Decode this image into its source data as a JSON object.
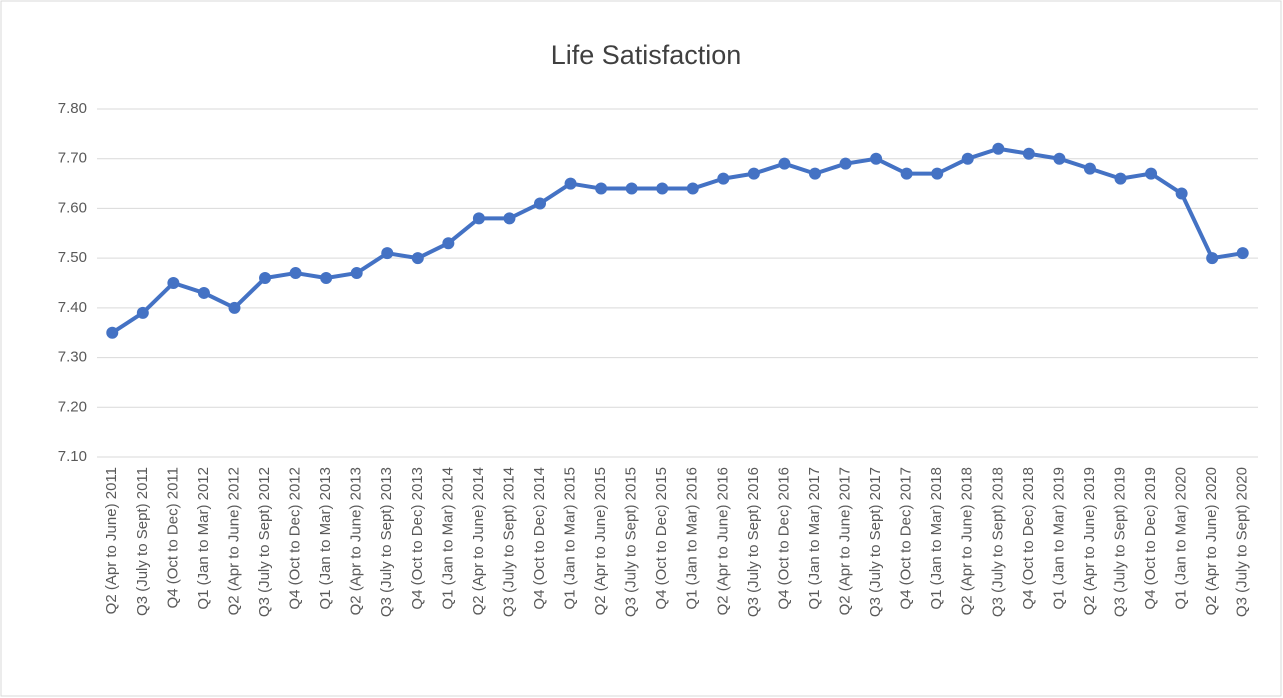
{
  "chart_data": {
    "type": "line",
    "title": "Life Satisfaction",
    "categories": [
      "Q2 (Apr to June) 2011",
      "Q3 (July to Sept) 2011",
      "Q4 (Oct to Dec) 2011",
      "Q1 (Jan to Mar) 2012",
      "Q2 (Apr to June) 2012",
      "Q3 (July to Sept) 2012",
      "Q4 (Oct to Dec) 2012",
      "Q1 (Jan to Mar) 2013",
      "Q2 (Apr to June) 2013",
      "Q3 (July to Sept) 2013",
      "Q4 (Oct to Dec) 2013",
      "Q1 (Jan to Mar) 2014",
      "Q2 (Apr to June) 2014",
      "Q3 (July to Sept) 2014",
      "Q4 (Oct to Dec) 2014",
      "Q1 (Jan to Mar) 2015",
      "Q2 (Apr to June) 2015",
      "Q3 (July to Sept) 2015",
      "Q4 (Oct to Dec) 2015",
      "Q1 (Jan to Mar) 2016",
      "Q2 (Apr to June) 2016",
      "Q3 (July to Sept) 2016",
      "Q4 (Oct to Dec) 2016",
      "Q1 (Jan to Mar) 2017",
      "Q2 (Apr to June) 2017",
      "Q3 (July to Sept) 2017",
      "Q4 (Oct to Dec) 2017",
      "Q1 (Jan to Mar) 2018",
      "Q2 (Apr to June) 2018",
      "Q3 (July to Sept) 2018",
      "Q4 (Oct to Dec) 2018",
      "Q1 (Jan to Mar) 2019",
      "Q2 (Apr to June) 2019",
      "Q3 (July to Sept) 2019",
      "Q4 (Oct to Dec) 2019",
      "Q1 (Jan to Mar) 2020",
      "Q2 (Apr to June) 2020",
      "Q3 (July to Sept) 2020"
    ],
    "values": [
      7.35,
      7.39,
      7.45,
      7.43,
      7.4,
      7.46,
      7.47,
      7.46,
      7.47,
      7.51,
      7.5,
      7.53,
      7.58,
      7.58,
      7.61,
      7.65,
      7.64,
      7.64,
      7.64,
      7.64,
      7.66,
      7.67,
      7.69,
      7.67,
      7.69,
      7.7,
      7.67,
      7.67,
      7.7,
      7.72,
      7.71,
      7.7,
      7.68,
      7.66,
      7.67,
      7.63,
      7.5,
      7.51
    ],
    "color": "#4472c4",
    "ylim": [
      7.1,
      7.8
    ],
    "yticks": [
      {
        "value": 7.1,
        "label": "7.10"
      },
      {
        "value": 7.2,
        "label": "7.20"
      },
      {
        "value": 7.3,
        "label": "7.30"
      },
      {
        "value": 7.4,
        "label": "7.40"
      },
      {
        "value": 7.5,
        "label": "7.50"
      },
      {
        "value": 7.6,
        "label": "7.60"
      },
      {
        "value": 7.7,
        "label": "7.70"
      },
      {
        "value": 7.8,
        "label": "7.80"
      }
    ],
    "grid": true
  }
}
